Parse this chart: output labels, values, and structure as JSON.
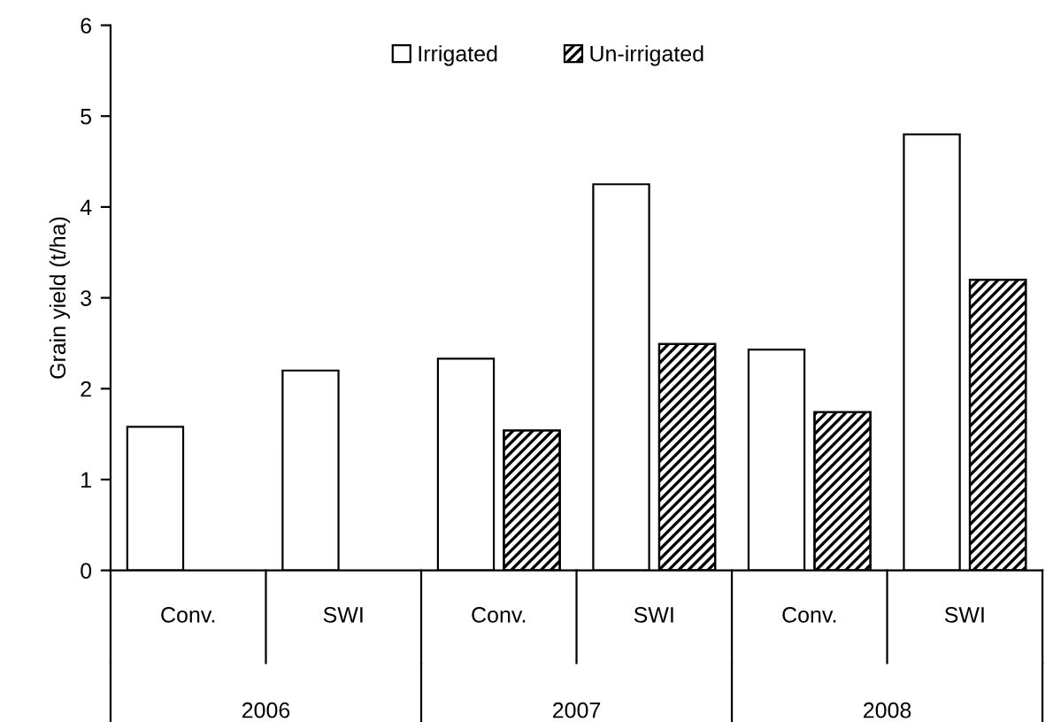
{
  "chart_data": {
    "type": "bar",
    "ylabel": "Grain yield (t/ha)",
    "categories": [
      "Conv.",
      "SWI",
      "Conv.",
      "SWI",
      "Conv.",
      "SWI"
    ],
    "series": [
      {
        "name": "Irrigated",
        "color": "#ffffff",
        "values": [
          1.58,
          2.2,
          2.33,
          4.25,
          2.43,
          4.8
        ]
      },
      {
        "name": "Un-irrigated",
        "color": "#000000",
        "values": [
          null,
          null,
          1.54,
          2.49,
          1.74,
          3.2
        ]
      }
    ],
    "annotations": [
      "2006",
      "2007",
      "2008"
    ],
    "ylim": [
      0,
      6
    ],
    "yticks": [
      0,
      1,
      2,
      3,
      4,
      5,
      6
    ],
    "grid": false,
    "legend": "top"
  }
}
